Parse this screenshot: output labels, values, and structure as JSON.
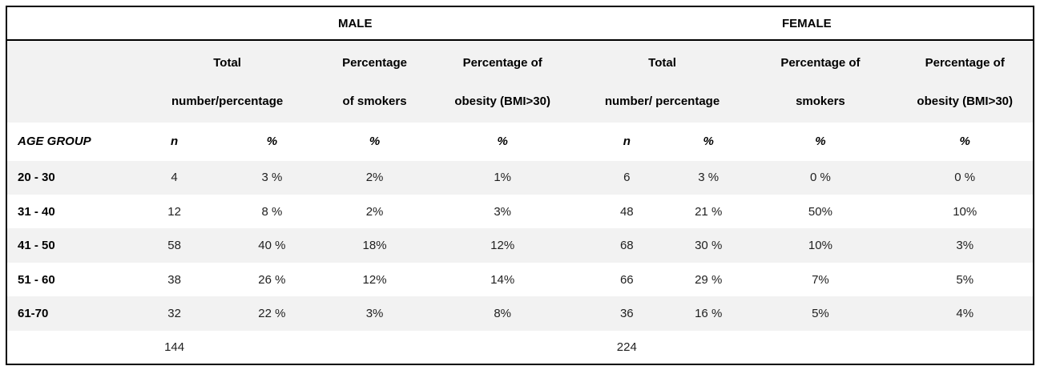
{
  "colors": {
    "stripe_row": "#f2f2f2",
    "border": "#000000",
    "background": "#ffffff",
    "header_text": "#000000",
    "value_text": "#1f1f1f"
  },
  "table": {
    "group_headers": [
      "MALE",
      "FEMALE"
    ],
    "column_headers": [
      {
        "line1": "Total",
        "line2": "number/percentage"
      },
      {
        "line1": "Percentage",
        "line2": "of smokers"
      },
      {
        "line1": "Percentage of",
        "line2": "obesity (BMI>30)"
      },
      {
        "line1": "Total",
        "line2": "number/ percentage"
      },
      {
        "line1": "Percentage of",
        "line2": "smokers"
      },
      {
        "line1": "Percentage of",
        "line2": "obesity (BMI>30)"
      }
    ],
    "subheader": {
      "age_label": "AGE GROUP",
      "cols": [
        "n",
        "%",
        "%",
        "%",
        "n",
        "%",
        "%",
        "%"
      ]
    },
    "rows": [
      {
        "age": "20 - 30",
        "values": [
          "4",
          "3 %",
          "2%",
          "1%",
          "6",
          "3 %",
          "0 %",
          "0 %"
        ]
      },
      {
        "age": "31 - 40",
        "values": [
          "12",
          "8 %",
          "2%",
          "3%",
          "48",
          "21 %",
          "50%",
          "10%"
        ]
      },
      {
        "age": "41 - 50",
        "values": [
          "58",
          "40 %",
          "18%",
          "12%",
          "68",
          "30 %",
          "10%",
          "3%"
        ]
      },
      {
        "age": "51 - 60",
        "values": [
          "38",
          "26 %",
          "12%",
          "14%",
          "66",
          "29 %",
          "7%",
          "5%"
        ]
      },
      {
        "age": "61-70",
        "values": [
          "32",
          "22 %",
          "3%",
          "8%",
          "36",
          "16 %",
          "5%",
          "4%"
        ]
      }
    ],
    "totals": {
      "male_total": "144",
      "female_total": "224"
    }
  },
  "chart_data": {
    "type": "table",
    "categories": [
      "20 - 30",
      "31 - 40",
      "41 - 50",
      "51 - 60",
      "61-70"
    ],
    "series": [
      {
        "name": "Male n",
        "values": [
          4,
          12,
          58,
          38,
          32
        ]
      },
      {
        "name": "Male total percentage",
        "values": [
          3,
          8,
          40,
          26,
          22
        ]
      },
      {
        "name": "Male percentage of smokers",
        "values": [
          2,
          2,
          18,
          12,
          3
        ]
      },
      {
        "name": "Male percentage of obesity (BMI>30)",
        "values": [
          1,
          3,
          12,
          14,
          8
        ]
      },
      {
        "name": "Female n",
        "values": [
          6,
          48,
          68,
          66,
          36
        ]
      },
      {
        "name": "Female total percentage",
        "values": [
          3,
          21,
          30,
          29,
          16
        ]
      },
      {
        "name": "Female percentage of smokers",
        "values": [
          0,
          50,
          10,
          7,
          5
        ]
      },
      {
        "name": "Female percentage of obesity (BMI>30)",
        "values": [
          0,
          10,
          3,
          5,
          4
        ]
      }
    ],
    "totals": {
      "male_n": 144,
      "female_n": 224
    }
  }
}
